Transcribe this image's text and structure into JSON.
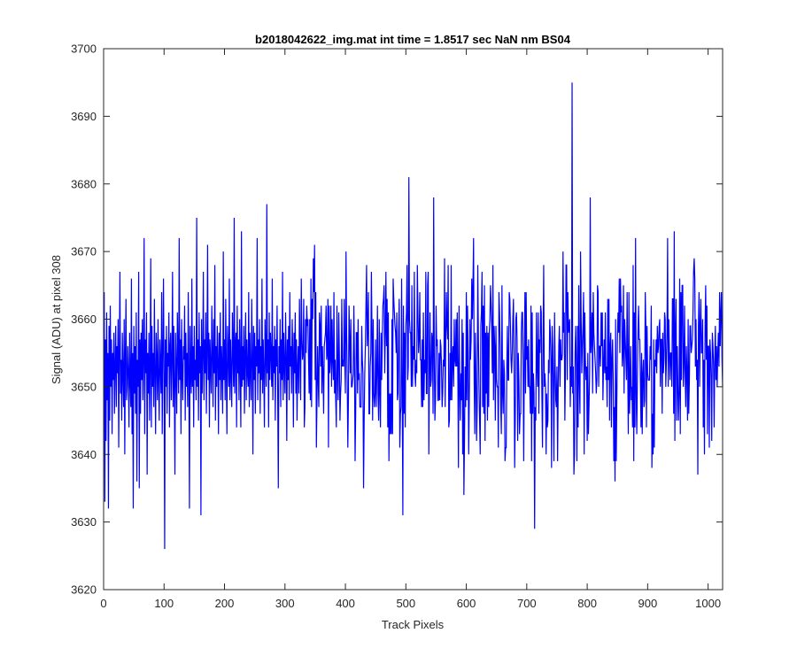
{
  "chart_data": {
    "type": "line",
    "title": "b2018042622_img.mat int time = 1.8517 sec  NaN nm BS04",
    "xlabel": "Track Pixels",
    "ylabel": "Signal (ADU) at pixel 308",
    "xlim": [
      0,
      1024
    ],
    "ylim": [
      3620,
      3700
    ],
    "xticks": [
      0,
      100,
      200,
      300,
      400,
      500,
      600,
      700,
      800,
      900,
      1000
    ],
    "yticks": [
      3620,
      3630,
      3640,
      3650,
      3660,
      3670,
      3680,
      3690,
      3700
    ],
    "grid": false,
    "legend": "none",
    "line_color": "#0000ff",
    "series": [
      {
        "x_start": 1,
        "x_step": 1,
        "baseline": 3654,
        "values": [
          3664,
          3633,
          3657,
          3642,
          3661,
          3648,
          3655,
          3632,
          3659,
          3645,
          3662,
          3650,
          3657,
          3643,
          3655,
          3651,
          3658,
          3646,
          3653,
          3659,
          3647,
          3656,
          3652,
          3660,
          3641,
          3655,
          3667,
          3649,
          3654,
          3645,
          3658,
          3652,
          3647,
          3660,
          3640,
          3655,
          3663,
          3648,
          3650,
          3656,
          3652,
          3644,
          3658,
          3651,
          3647,
          3666,
          3643,
          3655,
          3632,
          3659,
          3649,
          3656,
          3646,
          3661,
          3636,
          3654,
          3650,
          3667,
          3635,
          3657,
          3646,
          3658,
          3651,
          3660,
          3648,
          3654,
          3672,
          3643,
          3657,
          3652,
          3661,
          3637,
          3655,
          3649,
          3658,
          3645,
          3653,
          3669,
          3644,
          3659,
          3650,
          3655,
          3647,
          3663,
          3652,
          3643,
          3658,
          3654,
          3648,
          3660,
          3651,
          3645,
          3657,
          3653,
          3649,
          3664,
          3643,
          3655,
          3666,
          3652,
          3626,
          3657,
          3650,
          3659,
          3646,
          3655,
          3653,
          3661,
          3644,
          3656,
          3658,
          3648,
          3654,
          3667,
          3647,
          3659,
          3650,
          3637,
          3658,
          3653,
          3646,
          3661,
          3655,
          3649,
          3672,
          3651,
          3657,
          3643,
          3660,
          3652,
          3648,
          3656,
          3654,
          3662,
          3645,
          3658,
          3650,
          3655,
          3647,
          3664,
          3653,
          3632,
          3659,
          3652,
          3649,
          3666,
          3650,
          3656,
          3644,
          3659,
          3651,
          3654,
          3648,
          3675,
          3650,
          3657,
          3645,
          3661,
          3652,
          3656,
          3631,
          3660,
          3649,
          3655,
          3667,
          3648,
          3657,
          3652,
          3661,
          3646,
          3655,
          3671,
          3651,
          3658,
          3644,
          3657,
          3653,
          3649,
          3662,
          3655,
          3647,
          3660,
          3652,
          3668,
          3645,
          3656,
          3650,
          3659,
          3654,
          3643,
          3658,
          3651,
          3661,
          3648,
          3656,
          3653,
          3646,
          3670,
          3651,
          3657,
          3648,
          3663,
          3652,
          3643,
          3659,
          3655,
          3650,
          3666,
          3648,
          3657,
          3652,
          3647,
          3661,
          3655,
          3650,
          3675,
          3649,
          3656,
          3658,
          3644,
          3662,
          3652,
          3657,
          3648,
          3660,
          3653,
          3644,
          3673,
          3650,
          3656,
          3651,
          3659,
          3646,
          3655,
          3661,
          3648,
          3657,
          3652,
          3650,
          3664,
          3647,
          3658,
          3652,
          3648,
          3663,
          3655,
          3640,
          3659,
          3651,
          3658,
          3646,
          3656,
          3653,
          3672,
          3648,
          3657,
          3652,
          3660,
          3646,
          3656,
          3651,
          3666,
          3649,
          3657,
          3652,
          3644,
          3660,
          3655,
          3650,
          3677,
          3652,
          3657,
          3644,
          3661,
          3651,
          3658,
          3655,
          3650,
          3666,
          3648,
          3656,
          3652,
          3659,
          3645,
          3657,
          3653,
          3662,
          3649,
          3635,
          3656,
          3652,
          3660,
          3647,
          3657,
          3651,
          3667,
          3648,
          3658,
          3653,
          3649,
          3661,
          3655,
          3642,
          3657,
          3651,
          3659,
          3648,
          3664,
          3653,
          3656,
          3649,
          3660,
          3655,
          3644,
          3658,
          3652,
          3661,
          3649,
          3657,
          3645
        ]
      }
    ]
  }
}
